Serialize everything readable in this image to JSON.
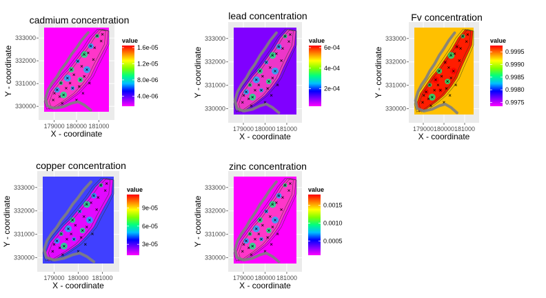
{
  "chart_data": [
    {
      "type": "heatmap",
      "title": "cadmium concentration",
      "xlabel": "X - coordinate",
      "ylabel": "Y - coordinate",
      "x_ticks": [
        179000,
        180000,
        181000
      ],
      "y_ticks": [
        330000,
        331000,
        332000,
        333000
      ],
      "xlim": [
        178300,
        181700
      ],
      "ylim": [
        329400,
        333700
      ],
      "legend_title": "value",
      "legend_ticks": [
        "4.0e-06",
        "8.0e-06",
        "1.2e-05",
        "1.6e-05"
      ],
      "legend_tick_values": [
        4e-06,
        8e-06,
        1.2e-05,
        1.6e-05
      ],
      "value_range": [
        1.5e-06,
        1.65e-05
      ],
      "scale": "rainbow",
      "background": "magenta"
    },
    {
      "type": "heatmap",
      "title": "lead concentration",
      "xlabel": "X - coordinate",
      "ylabel": "Y - coordinate",
      "x_ticks": [
        179000,
        180000,
        181000
      ],
      "y_ticks": [
        330000,
        331000,
        332000,
        333000
      ],
      "xlim": [
        178300,
        181700
      ],
      "ylim": [
        329400,
        333700
      ],
      "legend_title": "value",
      "legend_ticks": [
        "2e-04",
        "4e-04",
        "6e-04"
      ],
      "legend_tick_values": [
        0.0002,
        0.0004,
        0.0006
      ],
      "value_range": [
        3e-05,
        0.00062
      ],
      "scale": "rainbow",
      "background": "purple"
    },
    {
      "type": "heatmap",
      "title": "Fv concentration",
      "xlabel": "X - coordinate",
      "ylabel": "Y - coordinate",
      "x_ticks": [
        179000,
        180000,
        181000
      ],
      "y_ticks": [
        330000,
        331000,
        332000,
        333000
      ],
      "xlim": [
        178300,
        181700
      ],
      "ylim": [
        329400,
        333700
      ],
      "legend_title": "value",
      "legend_ticks": [
        "0.9975",
        "0.9980",
        "0.9985",
        "0.9990",
        "0.9995"
      ],
      "legend_tick_values": [
        0.9975,
        0.998,
        0.9985,
        0.999,
        0.9995
      ],
      "value_range": [
        0.99735,
        0.99975
      ],
      "scale": "rainbow",
      "background": "orange"
    },
    {
      "type": "heatmap",
      "title": "copper concentration",
      "xlabel": "X - coordinate",
      "ylabel": "Y - coordinate",
      "x_ticks": [
        179000,
        180000,
        181000
      ],
      "y_ticks": [
        330000,
        331000,
        332000,
        333000
      ],
      "xlim": [
        178300,
        181700
      ],
      "ylim": [
        329400,
        333700
      ],
      "legend_title": "value",
      "legend_ticks": [
        "3e-05",
        "6e-05",
        "9e-05"
      ],
      "legend_tick_values": [
        3e-05,
        6e-05,
        9e-05
      ],
      "value_range": [
        1.2e-05,
        0.000112
      ],
      "scale": "rainbow",
      "background": "blue"
    },
    {
      "type": "heatmap",
      "title": "zinc concentration",
      "xlabel": "X - coordinate",
      "ylabel": "Y - coordinate",
      "x_ticks": [
        179000,
        180000,
        181000
      ],
      "y_ticks": [
        330000,
        331000,
        332000,
        333000
      ],
      "xlim": [
        178300,
        181700
      ],
      "ylim": [
        329400,
        333700
      ],
      "legend_title": "value",
      "legend_ticks": [
        "0.0005",
        "0.0010",
        "0.0015"
      ],
      "legend_tick_values": [
        0.0005,
        0.001,
        0.0015
      ],
      "value_range": [
        0.0001,
        0.0018
      ],
      "scale": "rainbow",
      "background": "magenta"
    }
  ],
  "colors": {
    "panel_bg": "#ebebeb",
    "grid": "#ffffff",
    "river": "#7f7f7f",
    "contour": "#1a3d1a",
    "points": "#000000",
    "bg_magenta": "#ff00ff",
    "bg_purple": "#8000ff",
    "bg_orange": "#ffc000",
    "bg_blue": "#4040ff",
    "blob_mid": "#ff40c0",
    "blob_high": "#ff0000"
  }
}
